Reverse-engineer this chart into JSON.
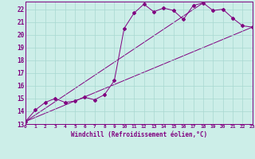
{
  "title": "",
  "xlabel": "Windchill (Refroidissement éolien,°C)",
  "ylabel": "",
  "background_color": "#cceee8",
  "line_color": "#800080",
  "grid_color": "#a8d8d0",
  "xlim": [
    0,
    23
  ],
  "ylim": [
    13,
    22.6
  ],
  "xticks": [
    0,
    1,
    2,
    3,
    4,
    5,
    6,
    7,
    8,
    9,
    10,
    11,
    12,
    13,
    14,
    15,
    16,
    17,
    18,
    19,
    20,
    21,
    22,
    23
  ],
  "yticks": [
    13,
    14,
    15,
    16,
    17,
    18,
    19,
    20,
    21,
    22
  ],
  "series": [
    [
      0,
      13.2
    ],
    [
      1,
      14.1
    ],
    [
      2,
      14.7
    ],
    [
      3,
      15.0
    ],
    [
      4,
      14.7
    ],
    [
      5,
      14.8
    ],
    [
      6,
      15.1
    ],
    [
      7,
      14.9
    ],
    [
      8,
      15.3
    ],
    [
      9,
      16.4
    ],
    [
      10,
      20.5
    ],
    [
      11,
      21.7
    ],
    [
      12,
      22.4
    ],
    [
      13,
      21.8
    ],
    [
      14,
      22.1
    ],
    [
      15,
      21.9
    ],
    [
      16,
      21.2
    ],
    [
      17,
      22.3
    ],
    [
      18,
      22.5
    ],
    [
      19,
      21.9
    ],
    [
      20,
      22.0
    ],
    [
      21,
      21.3
    ],
    [
      22,
      20.7
    ],
    [
      23,
      20.6
    ]
  ],
  "line2": [
    [
      0,
      13.2
    ],
    [
      23,
      20.6
    ]
  ],
  "line3": [
    [
      0,
      13.2
    ],
    [
      18,
      22.5
    ]
  ]
}
